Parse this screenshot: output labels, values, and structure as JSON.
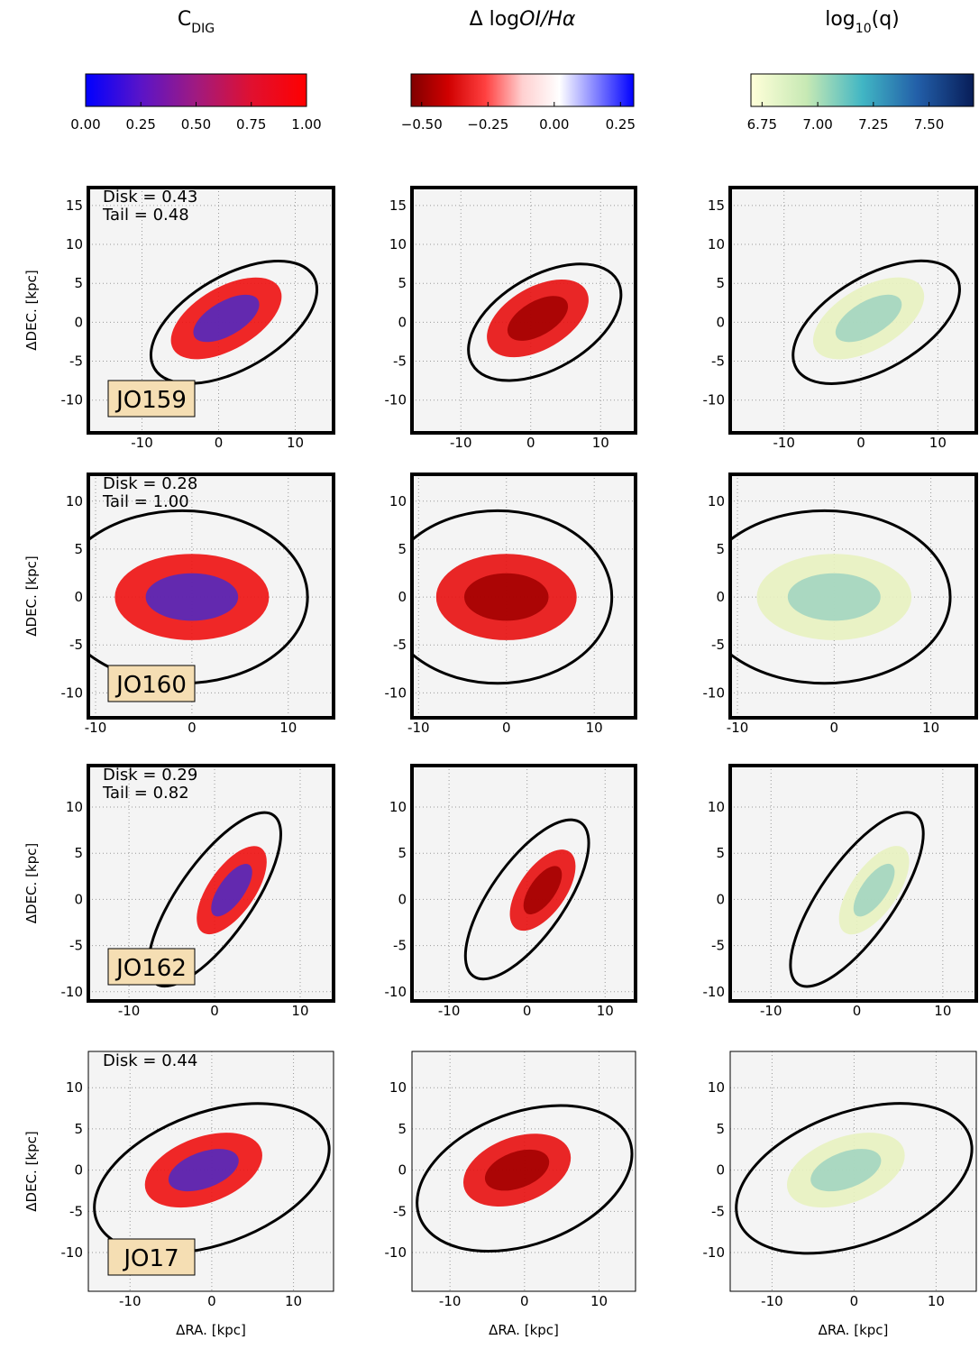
{
  "xlabel": "ΔRA. [kpc]",
  "ylabel": "ΔDEC. [kpc]",
  "columns": [
    {
      "title": [
        {
          "text": "C"
        },
        {
          "text": "DIG",
          "sub": true
        }
      ],
      "colorbar": {
        "colors": [
          "#0000ff",
          "#5a14c8",
          "#a01a80",
          "#e01030",
          "#ff0000"
        ],
        "lim": [
          0,
          1
        ],
        "ticks": [
          {
            "value": 0,
            "label": "0.00"
          },
          {
            "value": 0.25,
            "label": "0.25"
          },
          {
            "value": 0.5,
            "label": "0.50"
          },
          {
            "value": 0.75,
            "label": "0.75"
          },
          {
            "value": 1,
            "label": "1.00"
          }
        ]
      }
    },
    {
      "title": [
        {
          "text": "Δ log"
        },
        {
          "text": "OI/Hα",
          "italic": true
        }
      ],
      "colorbar": {
        "colors": [
          "#800000",
          "#d00000",
          "#ff4040",
          "#ffd0d0",
          "#ffffff",
          "#8080ff",
          "#0000ff"
        ],
        "lim": [
          -0.54,
          0.3
        ],
        "ticks": [
          {
            "value": -0.5,
            "label": "−0.50"
          },
          {
            "value": -0.25,
            "label": "−0.25"
          },
          {
            "value": 0,
            "label": "0.00"
          },
          {
            "value": 0.25,
            "label": "0.25"
          }
        ]
      }
    },
    {
      "title": [
        {
          "text": "log"
        },
        {
          "text": "10",
          "sub": true
        },
        {
          "text": "(q)"
        }
      ],
      "colorbar": {
        "colors": [
          "#ffffd9",
          "#c7e9b4",
          "#41b6c4",
          "#225ea8",
          "#081d58"
        ],
        "lim": [
          6.7,
          7.7
        ],
        "ticks": [
          6.75,
          {
            "value": 7,
            "label": "7.00"
          },
          7.25,
          {
            "value": 7.5,
            "label": "7.50"
          }
        ]
      }
    }
  ],
  "rows": [
    {
      "galaxy": "JO159",
      "stats": [
        "Disk = 0.43",
        "Tail = 0.48"
      ],
      "frame": "thick",
      "xlim": [
        -17,
        15
      ],
      "ylim": [
        -14.2,
        17.3
      ],
      "xticks": [
        -10,
        0,
        10
      ],
      "yticks": [
        -10,
        -5,
        0,
        5,
        10,
        15
      ]
    },
    {
      "galaxy": "JO160",
      "stats": [
        "Disk = 0.28",
        "Tail = 1.00"
      ],
      "frame": "thick",
      "xlim": [
        -10.75,
        14.7
      ],
      "ylim": [
        -12.6,
        12.8
      ],
      "xticks": [
        -10,
        0,
        10
      ],
      "yticks": [
        -10,
        -5,
        0,
        5,
        10
      ]
    },
    {
      "galaxy": "JO162",
      "stats": [
        "Disk = 0.29",
        "Tail = 0.82"
      ],
      "frame": "thick",
      "xlim": [
        -14.75,
        13.9
      ],
      "ylim": [
        -11,
        14.5
      ],
      "xticks": [
        -10,
        0,
        10
      ],
      "yticks": [
        -10,
        -5,
        0,
        5,
        10
      ]
    },
    {
      "galaxy": "JO17",
      "stats": [
        "Disk = 0.44"
      ],
      "frame": "thin",
      "xlim": [
        -15.1,
        14.9
      ],
      "ylim": [
        -14.7,
        14.4
      ],
      "xticks": [
        -10,
        0,
        10
      ],
      "yticks": [
        -10,
        -5,
        0,
        5,
        10
      ]
    }
  ]
}
